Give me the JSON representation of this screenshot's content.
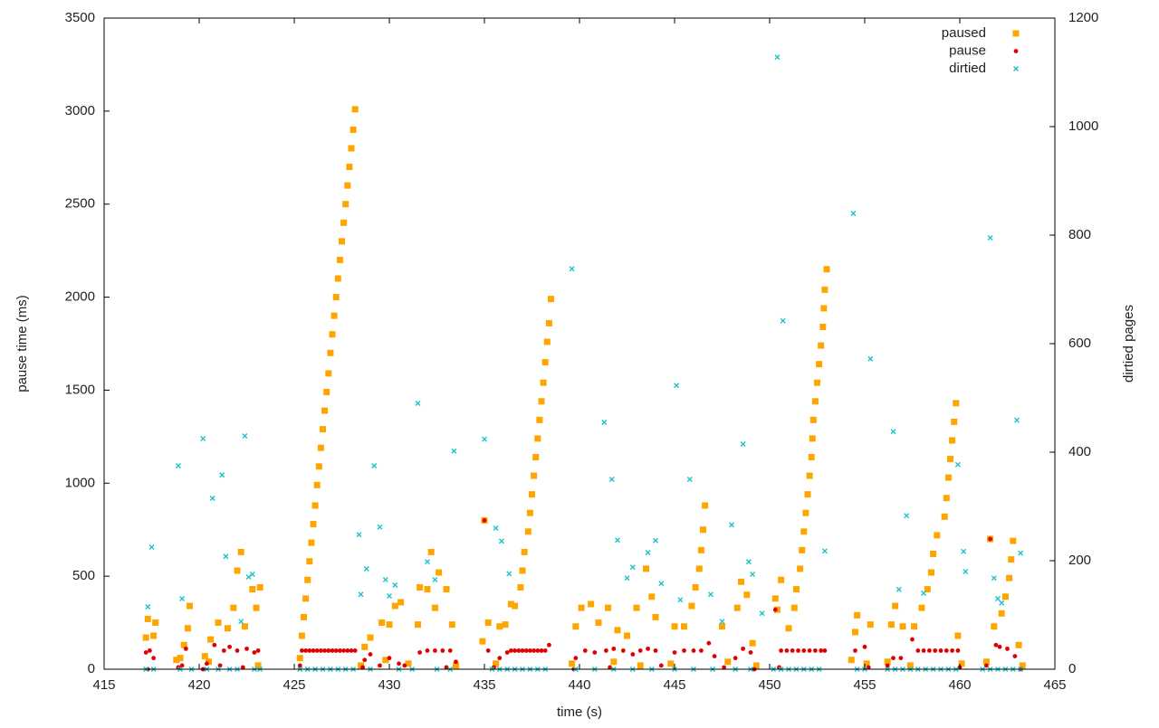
{
  "chart_data": {
    "type": "scatter",
    "xlabel": "time (s)",
    "ylabel": "pause time (ms)",
    "y2label": "dirtied pages",
    "xlim": [
      415,
      465
    ],
    "xticks": [
      415,
      420,
      425,
      430,
      435,
      440,
      445,
      450,
      455,
      460,
      465
    ],
    "ylim": [
      0,
      3500
    ],
    "yticks": [
      0,
      500,
      1000,
      1500,
      2000,
      2500,
      3000,
      3500
    ],
    "y2lim": [
      0,
      1200
    ],
    "y2ticks": [
      0,
      200,
      400,
      600,
      800,
      1000,
      1200
    ],
    "grid": false,
    "legend": "top-right",
    "series": [
      {
        "name": "paused",
        "color": "#ffa500",
        "marker": "square",
        "axis": "y",
        "x": [
          417.2,
          417.3,
          417.6,
          417.7,
          419.0,
          419.2,
          419.4,
          419.5,
          420.3,
          420.6,
          421.0,
          421.5,
          421.8,
          422.0,
          422.2,
          422.4,
          422.8,
          423.0,
          423.2,
          425.4,
          425.5,
          425.6,
          425.7,
          425.8,
          425.9,
          426.0,
          426.1,
          426.2,
          426.3,
          426.4,
          426.5,
          426.6,
          426.7,
          426.8,
          426.9,
          427.0,
          427.1,
          427.2,
          427.3,
          427.4,
          427.5,
          427.6,
          427.7,
          427.8,
          427.9,
          428.0,
          428.1,
          428.2,
          428.7,
          429.0,
          429.6,
          430.0,
          430.3,
          430.6,
          431.5,
          431.6,
          432.0,
          432.2,
          432.4,
          432.6,
          433.0,
          433.3,
          434.9,
          435.0,
          435.2,
          435.8,
          436.1,
          436.4,
          436.6,
          436.9,
          437.0,
          437.1,
          437.3,
          437.4,
          437.5,
          437.6,
          437.7,
          437.8,
          437.9,
          438.0,
          438.1,
          438.2,
          438.3,
          438.4,
          438.5,
          439.8,
          440.1,
          440.6,
          441.0,
          441.5,
          442.0,
          442.5,
          443.0,
          443.5,
          443.8,
          444.0,
          445.0,
          445.5,
          445.9,
          446.1,
          446.3,
          446.4,
          446.5,
          446.6,
          447.5,
          448.3,
          448.5,
          448.8,
          449.1,
          450.3,
          450.4,
          450.6,
          451.0,
          451.3,
          451.4,
          451.6,
          451.7,
          451.8,
          451.9,
          452.0,
          452.1,
          452.2,
          452.25,
          452.3,
          452.4,
          452.5,
          452.6,
          452.7,
          452.8,
          452.85,
          452.9,
          453.0,
          454.5,
          454.6,
          455.3,
          456.4,
          456.6,
          457.0,
          457.6,
          458.0,
          458.3,
          458.5,
          458.6,
          458.8,
          459.2,
          459.3,
          459.4,
          459.5,
          459.6,
          459.7,
          459.8,
          459.9,
          461.6,
          461.8,
          462.2,
          462.4,
          462.6,
          462.7,
          462.8,
          463.1,
          418.8,
          420.5,
          423.1,
          425.3,
          428.5,
          429.8,
          431.0,
          433.5,
          435.6,
          439.6,
          441.8,
          443.2,
          444.8,
          447.8,
          449.3,
          454.3,
          455.1,
          456.2,
          457.4,
          460.1,
          461.4,
          463.3
        ],
        "values": [
          170,
          270,
          180,
          250,
          60,
          130,
          220,
          340,
          70,
          160,
          250,
          220,
          330,
          530,
          630,
          230,
          430,
          330,
          440,
          180,
          280,
          380,
          480,
          580,
          680,
          780,
          880,
          990,
          1090,
          1190,
          1290,
          1390,
          1490,
          1590,
          1700,
          1800,
          1900,
          2000,
          2100,
          2200,
          2300,
          2400,
          2500,
          2600,
          2700,
          2800,
          2900,
          3010,
          120,
          170,
          250,
          240,
          340,
          360,
          240,
          440,
          430,
          630,
          330,
          520,
          430,
          240,
          150,
          800,
          250,
          230,
          240,
          350,
          340,
          440,
          530,
          630,
          740,
          840,
          940,
          1040,
          1140,
          1240,
          1340,
          1440,
          1540,
          1650,
          1760,
          1860,
          1990,
          230,
          330,
          350,
          250,
          330,
          210,
          180,
          330,
          540,
          390,
          280,
          230,
          230,
          340,
          440,
          540,
          640,
          750,
          880,
          230,
          330,
          470,
          400,
          140,
          380,
          320,
          480,
          220,
          330,
          430,
          540,
          640,
          740,
          840,
          940,
          1040,
          1140,
          1240,
          1340,
          1440,
          1540,
          1640,
          1740,
          1840,
          1940,
          2040,
          2150,
          200,
          290,
          240,
          240,
          340,
          230,
          230,
          330,
          430,
          520,
          620,
          720,
          820,
          920,
          1030,
          1130,
          1230,
          1330,
          1430,
          180,
          700,
          230,
          300,
          390,
          490,
          590,
          690,
          130,
          50,
          40,
          20,
          60,
          20,
          50,
          30,
          20,
          30,
          30,
          40,
          20,
          30,
          40,
          20,
          50,
          30,
          40,
          20,
          30,
          40,
          20
        ]
      },
      {
        "name": "pause",
        "color": "#e00000",
        "marker": "circle",
        "axis": "y",
        "x": [
          417.2,
          417.4,
          417.6,
          419.1,
          419.3,
          420.4,
          420.8,
          421.3,
          421.6,
          422.0,
          422.5,
          422.9,
          423.1,
          425.4,
          425.6,
          425.8,
          426.0,
          426.2,
          426.4,
          426.6,
          426.8,
          427.0,
          427.2,
          427.4,
          427.6,
          427.8,
          428.0,
          428.2,
          428.7,
          429.0,
          429.5,
          430.0,
          430.5,
          431.6,
          432.0,
          432.4,
          432.8,
          433.2,
          433.5,
          435.0,
          435.2,
          435.8,
          436.2,
          436.4,
          436.6,
          436.8,
          437.0,
          437.2,
          437.4,
          437.6,
          437.8,
          438.0,
          438.2,
          438.4,
          439.8,
          440.3,
          440.8,
          441.4,
          441.8,
          442.3,
          442.8,
          443.2,
          443.6,
          444.0,
          445.0,
          445.5,
          446.0,
          446.4,
          446.8,
          447.1,
          448.2,
          448.6,
          449.0,
          450.3,
          450.6,
          450.9,
          451.2,
          451.5,
          451.8,
          452.1,
          452.4,
          452.7,
          452.9,
          454.5,
          455.0,
          456.5,
          456.9,
          457.5,
          457.8,
          458.1,
          458.4,
          458.7,
          459.0,
          459.3,
          459.6,
          459.9,
          461.6,
          461.9,
          462.1,
          462.5,
          462.9,
          417.3,
          418.9,
          420.2,
          421.1,
          422.3,
          425.3,
          428.6,
          430.8,
          433.0,
          435.5,
          439.7,
          441.6,
          444.3,
          447.6,
          449.2,
          450.5,
          455.2,
          456.2,
          460.0,
          461.4,
          463.2
        ],
        "values": [
          90,
          100,
          60,
          20,
          110,
          30,
          130,
          100,
          120,
          100,
          110,
          90,
          100,
          100,
          100,
          100,
          100,
          100,
          100,
          100,
          100,
          100,
          100,
          100,
          100,
          100,
          100,
          100,
          50,
          80,
          20,
          60,
          30,
          90,
          100,
          100,
          100,
          100,
          40,
          800,
          100,
          60,
          90,
          100,
          100,
          100,
          100,
          100,
          100,
          100,
          100,
          100,
          100,
          130,
          60,
          100,
          90,
          100,
          110,
          100,
          80,
          100,
          110,
          100,
          90,
          100,
          100,
          100,
          140,
          70,
          60,
          110,
          90,
          320,
          100,
          100,
          100,
          100,
          100,
          100,
          100,
          100,
          100,
          100,
          120,
          60,
          60,
          160,
          100,
          100,
          100,
          100,
          100,
          100,
          100,
          100,
          700,
          130,
          120,
          110,
          70,
          0,
          10,
          0,
          20,
          10,
          20,
          10,
          20,
          10,
          10,
          0,
          10,
          20,
          10,
          0,
          10,
          10,
          20,
          10,
          20,
          0
        ]
      },
      {
        "name": "dirtied",
        "color": "#1fc2cc",
        "marker": "x",
        "axis": "y2",
        "x": [
          417.5,
          417.3,
          418.9,
          419.1,
          420.2,
          420.7,
          421.2,
          421.4,
          422.4,
          422.2,
          422.6,
          422.8,
          428.4,
          428.5,
          428.8,
          429.2,
          429.5,
          429.8,
          430.0,
          430.3,
          431.5,
          432.0,
          432.4,
          433.4,
          435.0,
          435.6,
          435.9,
          436.3,
          439.6,
          441.3,
          441.7,
          442.0,
          442.5,
          442.8,
          443.6,
          444.0,
          444.3,
          445.1,
          445.3,
          445.8,
          446.9,
          447.5,
          448.0,
          448.6,
          448.9,
          449.1,
          449.6,
          450.4,
          450.7,
          452.9,
          454.4,
          455.3,
          456.5,
          456.8,
          457.2,
          458.1,
          459.9,
          460.2,
          460.3,
          461.6,
          461.8,
          462.0,
          462.2,
          463.0,
          463.2,
          417.2,
          417.6,
          419.0,
          419.6,
          420.4,
          421.0,
          421.6,
          422.0,
          422.9,
          423.2,
          425.3,
          425.7,
          426.1,
          426.5,
          426.9,
          427.3,
          427.7,
          428.1,
          429.0,
          430.5,
          431.2,
          432.5,
          433.2,
          435.4,
          435.8,
          436.2,
          436.6,
          437.0,
          437.4,
          437.8,
          438.2,
          439.8,
          440.8,
          441.8,
          442.8,
          443.8,
          445.0,
          446.0,
          447.0,
          448.2,
          449.0,
          450.2,
          450.6,
          451.0,
          451.4,
          451.8,
          452.2,
          452.6,
          454.6,
          455.0,
          456.2,
          456.6,
          457.0,
          457.4,
          457.8,
          458.2,
          458.6,
          459.0,
          459.4,
          459.8,
          461.2,
          461.6,
          462.0,
          462.4,
          462.8,
          463.2
        ],
        "values": [
          225,
          115,
          375,
          130,
          425,
          315,
          358,
          208,
          430,
          88,
          170,
          175,
          248,
          138,
          185,
          375,
          262,
          165,
          135,
          155,
          490,
          198,
          165,
          402,
          424,
          260,
          236,
          176,
          738,
          455,
          350,
          238,
          168,
          188,
          215,
          237,
          158,
          523,
          128,
          350,
          138,
          88,
          266,
          415,
          198,
          175,
          103,
          1128,
          642,
          218,
          840,
          572,
          438,
          147,
          283,
          140,
          377,
          217,
          180,
          795,
          168,
          130,
          122,
          459,
          214,
          0,
          0,
          0,
          0,
          0,
          0,
          0,
          0,
          0,
          0,
          0,
          0,
          0,
          0,
          0,
          0,
          0,
          0,
          0,
          0,
          0,
          0,
          0,
          0,
          0,
          0,
          0,
          0,
          0,
          0,
          0,
          0,
          0,
          0,
          0,
          0,
          0,
          0,
          0,
          0,
          0,
          0,
          0,
          0,
          0,
          0,
          0,
          0,
          0,
          0,
          0,
          0,
          0,
          0,
          0,
          0,
          0,
          0,
          0,
          0,
          0,
          0,
          0,
          0,
          0,
          0
        ]
      }
    ]
  }
}
